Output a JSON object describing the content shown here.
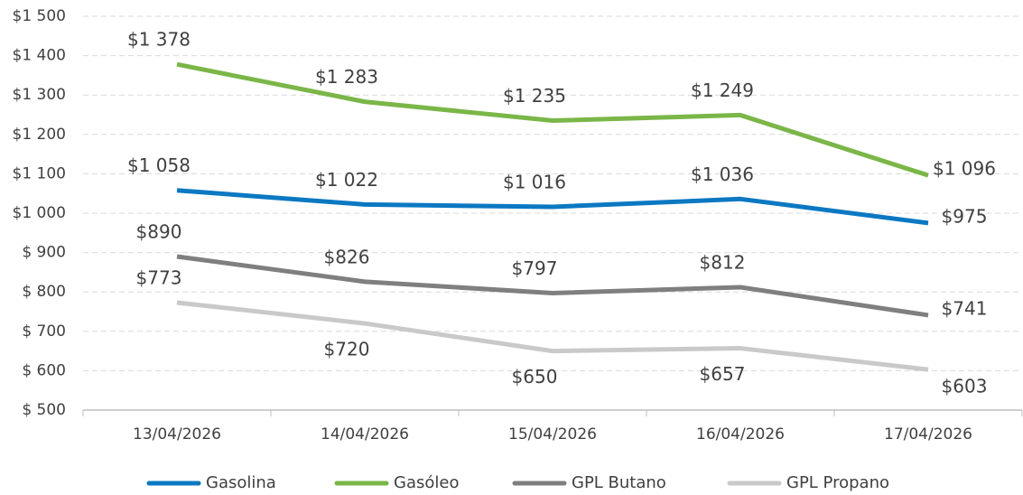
{
  "chart_data": {
    "type": "line",
    "categories": [
      "13/04/2026",
      "14/04/2026",
      "15/04/2026",
      "16/04/2026",
      "17/04/2026"
    ],
    "series": [
      {
        "name": "Gasolina",
        "color": "#0b78c2",
        "values": [
          1058,
          1022,
          1016,
          1036,
          975
        ],
        "value_labels": [
          "$1 058",
          "$1 022",
          "$1 016",
          "$1 036",
          "$975"
        ]
      },
      {
        "name": "Gasóleo",
        "color": "#7ab648",
        "values": [
          1378,
          1283,
          1235,
          1249,
          1096
        ],
        "value_labels": [
          "$1 378",
          "$1 283",
          "$1 235",
          "$1 249",
          "$1 096"
        ]
      },
      {
        "name": "GPL Butano",
        "color": "#7f7f7f",
        "values": [
          890,
          826,
          797,
          812,
          741
        ],
        "value_labels": [
          "$890",
          "$826",
          "$797",
          "$812",
          "$741"
        ]
      },
      {
        "name": "GPL Propano",
        "color": "#c9c9c9",
        "values": [
          773,
          720,
          650,
          657,
          603
        ],
        "value_labels": [
          "$773",
          "$720",
          "$650",
          "$657",
          "$603"
        ]
      }
    ],
    "ylim": [
      500,
      1500
    ],
    "yticks": [
      {
        "value": 500,
        "label": "$ 500"
      },
      {
        "value": 600,
        "label": "$ 600"
      },
      {
        "value": 700,
        "label": "$ 700"
      },
      {
        "value": 800,
        "label": "$ 800"
      },
      {
        "value": 900,
        "label": "$ 900"
      },
      {
        "value": 1000,
        "label": "$1 000"
      },
      {
        "value": 1100,
        "label": "$1 100"
      },
      {
        "value": 1200,
        "label": "$1 200"
      },
      {
        "value": 1300,
        "label": "$1 300"
      },
      {
        "value": 1400,
        "label": "$1 400"
      },
      {
        "value": 1500,
        "label": "$1 500"
      }
    ],
    "grid": true,
    "legend": "bottom"
  }
}
